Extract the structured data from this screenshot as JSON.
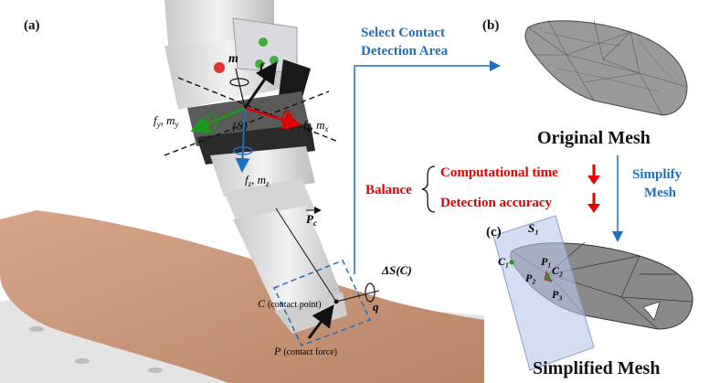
{
  "panels": {
    "a": "(a)",
    "b": "(b)",
    "c": "(c)"
  },
  "flow": {
    "select_line1": "Select Contact",
    "select_line2": "Detection Area",
    "simplify_line1": "Simplify",
    "simplify_line2": "Mesh"
  },
  "balance": {
    "label": "Balance",
    "item1": "Computational time",
    "item2": "Detection accuracy"
  },
  "mesh": {
    "original_caption": "Original Mesh",
    "simplified_caption": "Simplified Mesh",
    "plane_label": "S₁",
    "c1_label": "C₁",
    "c2_label": "C₂",
    "p1_label": "P₁",
    "p2_label": "P₂",
    "p3_label": "P₃"
  },
  "robot": {
    "m_label": "m",
    "f_label": "f",
    "fy_label": "f",
    "fy_sub": "y",
    "my_label": "m",
    "my_sub": "y",
    "fx_label": "f",
    "fx_sub": "x",
    "mx_label": "m",
    "mx_sub": "x",
    "frame_label": "{S}",
    "fz_label": "f",
    "fz_sub": "z",
    "mz_label": "m",
    "mz_sub": "z",
    "pc_label": "P",
    "pc_sub": "c",
    "ds_label": "ΔS(C)",
    "q_label": "q",
    "c_label": "C",
    "c_note": "(contact point)",
    "p_label": "P",
    "p_note": "(contact force)"
  },
  "colors": {
    "blue_text": "#1f6fbf",
    "red_text": "#e00000",
    "mesh_fill": "#8a8a8a",
    "plane_fill": "#b8c6ea"
  }
}
